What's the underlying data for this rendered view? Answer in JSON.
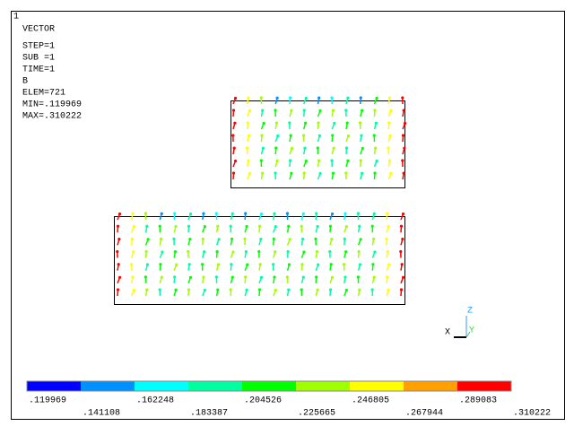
{
  "window": {
    "number": "1"
  },
  "info": {
    "lines": [
      "VECTOR",
      "STEP=1",
      "SUB =1",
      "TIME=1",
      "B",
      "ELEM=721",
      "MIN=.119969",
      "MAX=.310222"
    ]
  },
  "legend": {
    "colors": [
      "#0000ff",
      "#0090ff",
      "#00ffff",
      "#00ffa0",
      "#00ff00",
      "#a0ff00",
      "#ffff00",
      "#ffa000",
      "#ff0000"
    ],
    "labels": [
      ".119969",
      ".141108",
      ".162248",
      ".183387",
      ".204526",
      ".225665",
      ".246805",
      ".267944",
      ".289083",
      ".310222"
    ]
  },
  "triad": {
    "x": "X",
    "y": "Y",
    "z": "Z"
  }
}
